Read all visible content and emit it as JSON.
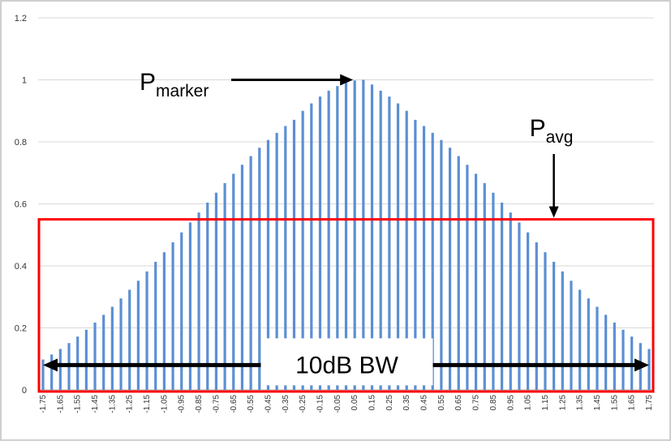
{
  "chart_data": {
    "type": "bar",
    "title": "",
    "xlabel": "",
    "ylabel": "",
    "ylim": [
      0,
      1.2
    ],
    "yticks": [
      "0",
      "0.2",
      "0.4",
      "0.6",
      "0.8",
      "1",
      "1.2"
    ],
    "ytick_values": [
      0,
      0.2,
      0.4,
      0.6,
      0.8,
      1.0,
      1.2
    ],
    "x_start": -1.75,
    "x_step": 0.05,
    "x_count": 71,
    "x_label_every": 2,
    "grid": "horizontal",
    "bar_color": "#5b8fd4",
    "values": [
      0.098,
      0.114,
      0.132,
      0.151,
      0.172,
      0.194,
      0.217,
      0.242,
      0.268,
      0.295,
      0.323,
      0.352,
      0.382,
      0.413,
      0.444,
      0.476,
      0.508,
      0.54,
      0.572,
      0.604,
      0.636,
      0.667,
      0.697,
      0.726,
      0.754,
      0.781,
      0.806,
      0.829,
      0.851,
      0.871,
      0.9,
      0.924,
      0.946,
      0.965,
      0.98,
      0.991,
      0.998,
      1.0,
      0.985,
      0.965,
      0.946,
      0.924,
      0.9,
      0.871,
      0.851,
      0.829,
      0.806,
      0.781,
      0.754,
      0.726,
      0.697,
      0.667,
      0.636,
      0.604,
      0.572,
      0.54,
      0.508,
      0.476,
      0.444,
      0.413,
      0.382,
      0.352,
      0.323,
      0.295,
      0.268,
      0.242,
      0.217,
      0.194,
      0.172,
      0.151,
      0.132
    ],
    "annotations": {
      "marker": {
        "main": "P",
        "sub": "marker",
        "x": 0.05,
        "y": 1.0
      },
      "avg": {
        "main": "P",
        "sub": "avg",
        "x": 1.2,
        "y": 0.55
      },
      "bw_label": "10dB  BW",
      "bw_box": {
        "x_from": -1.75,
        "x_to": 1.75,
        "y_from": 0,
        "y_to": 0.55,
        "color": "#ff0000"
      },
      "bw_arrow_y": 0.08
    }
  }
}
